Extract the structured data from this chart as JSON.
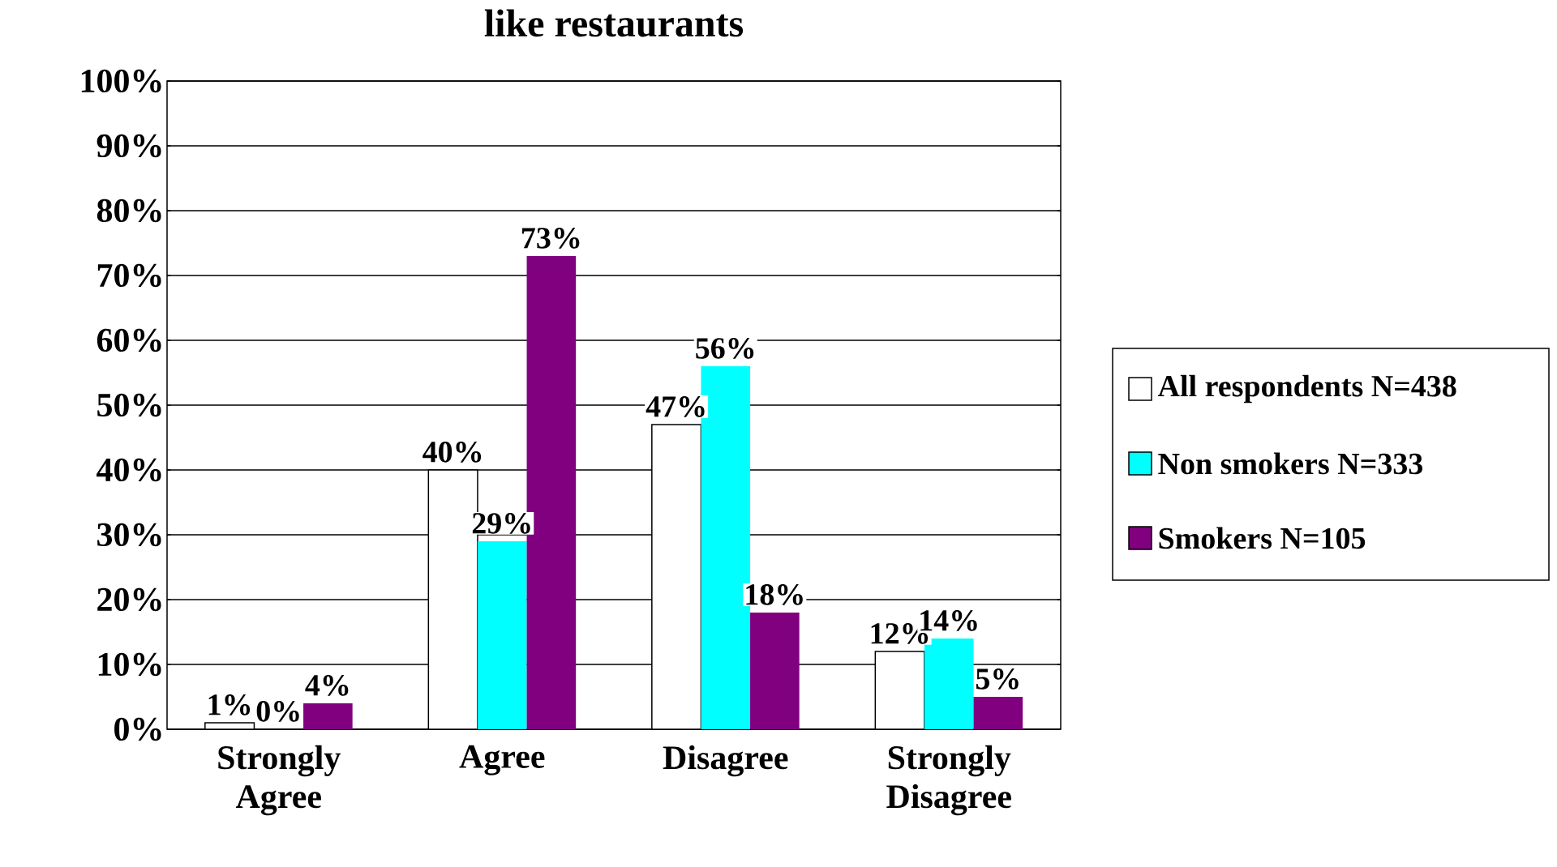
{
  "chart_data": {
    "type": "bar",
    "title": "like restaurants",
    "categories": [
      "Strongly Agree",
      "Agree",
      "Disagree",
      "Strongly Disagree"
    ],
    "series": [
      {
        "name": "All respondents N=438",
        "color": "#ffffff",
        "values": [
          1,
          40,
          47,
          12
        ],
        "value_labels": [
          "1%",
          "40%",
          "47%",
          "12%"
        ]
      },
      {
        "name": "Non smokers N=333",
        "color": "#00ffff",
        "values": [
          0,
          29,
          56,
          14
        ],
        "value_labels": [
          "0%",
          "29%",
          "56%",
          "14%"
        ]
      },
      {
        "name": "Smokers N=105",
        "color": "#800080",
        "values": [
          4,
          73,
          18,
          5
        ],
        "value_labels": [
          "4%",
          "73%",
          "18%",
          "5%"
        ]
      }
    ],
    "ylim": [
      0,
      100
    ],
    "yticks": [
      {
        "value": 0,
        "label": "0%"
      },
      {
        "value": 10,
        "label": "10%"
      },
      {
        "value": 20,
        "label": "20%"
      },
      {
        "value": 30,
        "label": "30%"
      },
      {
        "value": 40,
        "label": "40%"
      },
      {
        "value": 50,
        "label": "50%"
      },
      {
        "value": 60,
        "label": "60%"
      },
      {
        "value": 70,
        "label": "70%"
      },
      {
        "value": 80,
        "label": "80%"
      },
      {
        "value": 90,
        "label": "90%"
      },
      {
        "value": 100,
        "label": "100%"
      }
    ],
    "grid": "y",
    "legend": "right"
  }
}
